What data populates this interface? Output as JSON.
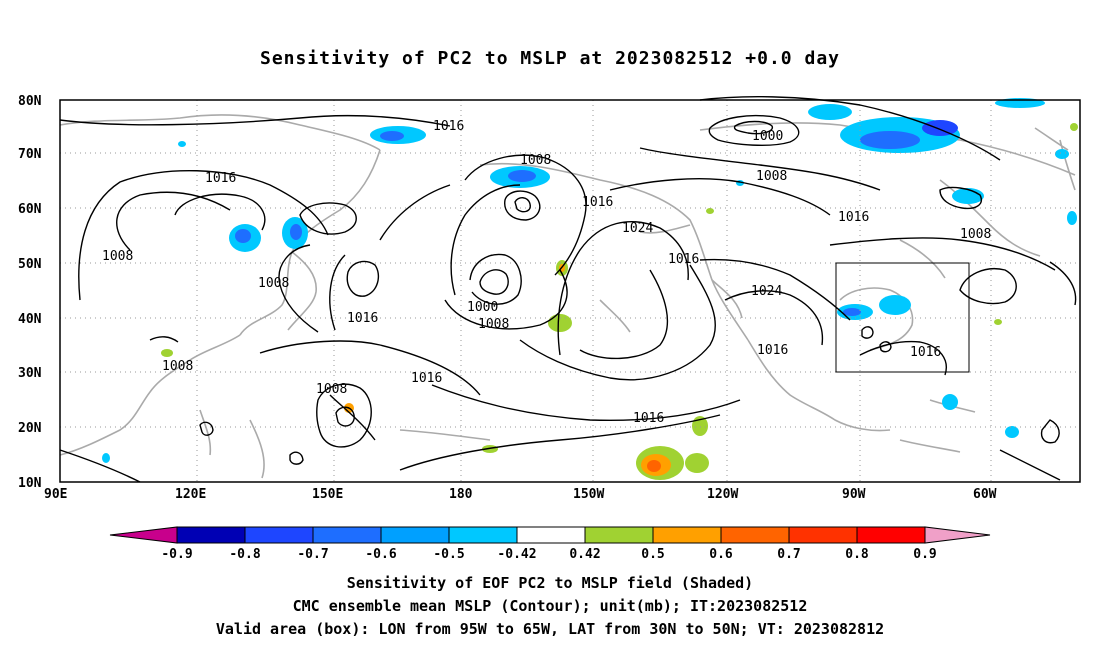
{
  "title": "Sensitivity of PC2 to MSLP at 2023082512 +0.0 day",
  "map": {
    "lat_labels": [
      "80N",
      "70N",
      "60N",
      "50N",
      "40N",
      "30N",
      "20N",
      "10N"
    ],
    "lon_labels": [
      "90E",
      "120E",
      "150E",
      "180",
      "150W",
      "120W",
      "90W",
      "60W"
    ],
    "valid_box": {
      "lon_from": "95W",
      "lon_to": "65W",
      "lat_from": "30N",
      "lat_to": "50N"
    },
    "contour_labels": [
      {
        "text": "1016"
      },
      {
        "text": "1016"
      },
      {
        "text": "1008"
      },
      {
        "text": "1008"
      },
      {
        "text": "1016"
      },
      {
        "text": "1016"
      },
      {
        "text": "1008"
      },
      {
        "text": "1008"
      },
      {
        "text": "1016"
      },
      {
        "text": "1024"
      },
      {
        "text": "1000"
      },
      {
        "text": "1008"
      },
      {
        "text": "1016"
      },
      {
        "text": "1016"
      },
      {
        "text": "1000"
      },
      {
        "text": "1008"
      },
      {
        "text": "1016"
      },
      {
        "text": "1008"
      },
      {
        "text": "1024"
      },
      {
        "text": "1016"
      },
      {
        "text": "1016"
      },
      {
        "text": "1008"
      }
    ]
  },
  "colorbar": {
    "labels": [
      "-0.9",
      "-0.8",
      "-0.7",
      "-0.6",
      "-0.5",
      "-0.42",
      "0.42",
      "0.5",
      "0.6",
      "0.7",
      "0.8",
      "0.9"
    ],
    "colors": [
      "#0000b4",
      "#0014ff",
      "#1e46ff",
      "#1e6eff",
      "#00a0ff",
      "#00c8ff",
      "#ffffff",
      "#a0d232",
      "#ffa000",
      "#ff6400",
      "#ff3200",
      "#ff0000"
    ],
    "left_arrow_color": "#c8008c",
    "right_arrow_color": "#f0a0c8"
  },
  "captions": {
    "line1": "Sensitivity of EOF PC2 to MSLP field (Shaded)",
    "line2": "CMC ensemble mean MSLP (Contour); unit(mb); IT:2023082512",
    "line3": "Valid area (box): LON from 95W to 65W, LAT from 30N to 50N; VT: 2023082812"
  }
}
